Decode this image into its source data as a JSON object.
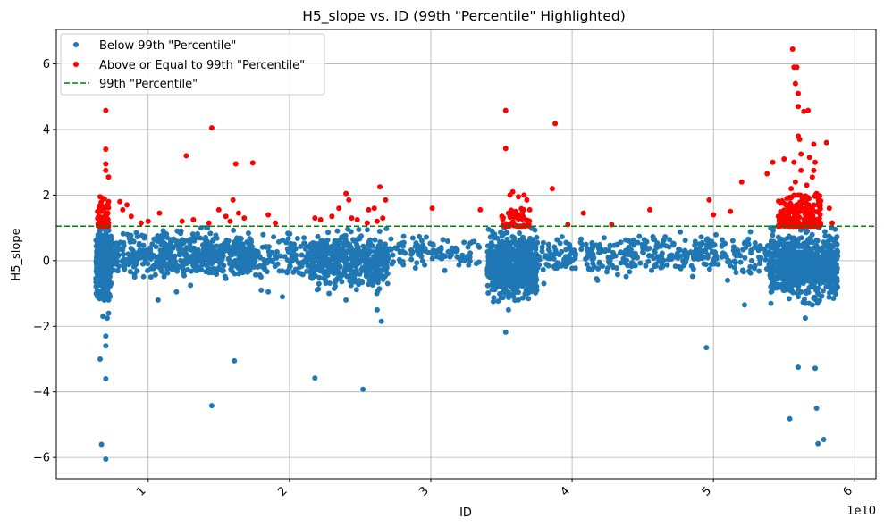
{
  "chart_data": {
    "type": "scatter",
    "title": "H5_slope vs. ID (99th \"Percentile\" Highlighted)",
    "xlabel": "ID",
    "ylabel": "H5_slope",
    "x_offset_label": "1e10",
    "xlim": [
      3500000000.0,
      61500000000.0
    ],
    "ylim": [
      -6.65,
      7.05
    ],
    "xticks": [
      {
        "value": 10000000000.0,
        "label": "1"
      },
      {
        "value": 20000000000.0,
        "label": "2"
      },
      {
        "value": 30000000000.0,
        "label": "3"
      },
      {
        "value": 40000000000.0,
        "label": "4"
      },
      {
        "value": 50000000000.0,
        "label": "5"
      },
      {
        "value": 60000000000.0,
        "label": "6"
      }
    ],
    "yticks": [
      {
        "value": -6,
        "label": "−6"
      },
      {
        "value": -4,
        "label": "−4"
      },
      {
        "value": -2,
        "label": "−2"
      },
      {
        "value": 0,
        "label": "0"
      },
      {
        "value": 2,
        "label": "2"
      },
      {
        "value": 4,
        "label": "4"
      },
      {
        "value": 6,
        "label": "6"
      }
    ],
    "grid": true,
    "legend_position": "top-left",
    "threshold": {
      "name": "99th \"Percentile\"",
      "value": 1.05,
      "color": "#008000",
      "style": "dashed"
    },
    "series": [
      {
        "name": "Below 99th \"Percentile\"",
        "color": "#1f77b4",
        "points": [
          [
            6600000000.0,
            -3.0
          ],
          [
            6700000000.0,
            -5.6
          ],
          [
            7000000000.0,
            -6.05
          ],
          [
            7000000000.0,
            -3.6
          ],
          [
            7000000000.0,
            -2.6
          ],
          [
            7000000000.0,
            -2.3
          ],
          [
            6800000000.0,
            -1.7
          ],
          [
            7100000000.0,
            -1.75
          ],
          [
            7200000000.0,
            -1.6
          ],
          [
            7200000000.0,
            -1.2
          ],
          [
            10700000000.0,
            -1.2
          ],
          [
            12000000000.0,
            -0.95
          ],
          [
            13000000000.0,
            -0.75
          ],
          [
            14500000000.0,
            -4.42
          ],
          [
            16100000000.0,
            -3.05
          ],
          [
            18000000000.0,
            -0.9
          ],
          [
            18500000000.0,
            -0.95
          ],
          [
            19500000000.0,
            -1.1
          ],
          [
            21800000000.0,
            -3.58
          ],
          [
            25200000000.0,
            -3.92
          ],
          [
            26500000000.0,
            -1.85
          ],
          [
            26200000000.0,
            -1.5
          ],
          [
            24000000000.0,
            -1.2
          ],
          [
            22800000000.0,
            -1.0
          ],
          [
            35300000000.0,
            -2.18
          ],
          [
            35500000000.0,
            -1.5
          ],
          [
            36200000000.0,
            -1.2
          ],
          [
            37500000000.0,
            -0.9
          ],
          [
            38000000000.0,
            -0.7
          ],
          [
            49500000000.0,
            -2.65
          ],
          [
            52200000000.0,
            -1.35
          ],
          [
            51000000000.0,
            -0.6
          ],
          [
            55400000000.0,
            -4.82
          ],
          [
            56000000000.0,
            -3.25
          ],
          [
            56500000000.0,
            -1.75
          ],
          [
            57000000000.0,
            -1.35
          ],
          [
            57200000000.0,
            -3.28
          ],
          [
            57300000000.0,
            -4.5
          ],
          [
            57400000000.0,
            -5.58
          ],
          [
            57800000000.0,
            -5.45
          ],
          [
            57400000000.0,
            -1.0
          ]
        ],
        "clusters": [
          {
            "x": [
              6300000000.0,
              7400000000.0
            ],
            "y": [
              -1.2,
              1.0
            ],
            "n": 420
          },
          {
            "x": [
              7400000000.0,
              10500000000.0
            ],
            "y": [
              -0.6,
              0.9
            ],
            "n": 120
          },
          {
            "x": [
              10500000000.0,
              17500000000.0
            ],
            "y": [
              -0.7,
              1.0
            ],
            "n": 420
          },
          {
            "x": [
              17500000000.0,
              21500000000.0
            ],
            "y": [
              -0.6,
              0.9
            ],
            "n": 110
          },
          {
            "x": [
              21500000000.0,
              27000000000.0
            ],
            "y": [
              -1.0,
              1.0
            ],
            "n": 460
          },
          {
            "x": [
              27000000000.0,
              33500000000.0
            ],
            "y": [
              -0.3,
              0.8
            ],
            "n": 110
          },
          {
            "x": [
              34000000000.0,
              37500000000.0
            ],
            "y": [
              -1.3,
              1.0
            ],
            "n": 560
          },
          {
            "x": [
              37500000000.0,
              44000000000.0
            ],
            "y": [
              -0.6,
              0.9
            ],
            "n": 150
          },
          {
            "x": [
              44000000000.0,
              54000000000.0
            ],
            "y": [
              -0.5,
              0.9
            ],
            "n": 240
          },
          {
            "x": [
              54000000000.0,
              58800000000.0
            ],
            "y": [
              -1.3,
              1.0
            ],
            "n": 720
          }
        ]
      },
      {
        "name": "Above or Equal to 99th \"Percentile\"",
        "color": "#ff0000",
        "points": [
          [
            7000000000.0,
            4.58
          ],
          [
            7000000000.0,
            3.4
          ],
          [
            7000000000.0,
            2.95
          ],
          [
            7000000000.0,
            2.75
          ],
          [
            7200000000.0,
            2.55
          ],
          [
            6600000000.0,
            1.95
          ],
          [
            6800000000.0,
            1.9
          ],
          [
            7200000000.0,
            1.8
          ],
          [
            8000000000.0,
            1.8
          ],
          [
            8500000000.0,
            1.7
          ],
          [
            8200000000.0,
            1.55
          ],
          [
            8800000000.0,
            1.35
          ],
          [
            9500000000.0,
            1.15
          ],
          [
            10000000000.0,
            1.2
          ],
          [
            10800000000.0,
            1.45
          ],
          [
            12700000000.0,
            3.2
          ],
          [
            12400000000.0,
            1.2
          ],
          [
            13200000000.0,
            1.25
          ],
          [
            14500000000.0,
            4.05
          ],
          [
            15000000000.0,
            1.55
          ],
          [
            15500000000.0,
            1.35
          ],
          [
            16000000000.0,
            1.85
          ],
          [
            16200000000.0,
            2.95
          ],
          [
            17400000000.0,
            2.98
          ],
          [
            16400000000.0,
            1.45
          ],
          [
            16800000000.0,
            1.3
          ],
          [
            15800000000.0,
            1.2
          ],
          [
            14300000000.0,
            1.15
          ],
          [
            18500000000.0,
            1.4
          ],
          [
            19000000000.0,
            1.15
          ],
          [
            21800000000.0,
            1.3
          ],
          [
            22200000000.0,
            1.25
          ],
          [
            23000000000.0,
            1.35
          ],
          [
            23500000000.0,
            1.6
          ],
          [
            24000000000.0,
            2.05
          ],
          [
            24200000000.0,
            1.85
          ],
          [
            24400000000.0,
            1.3
          ],
          [
            24800000000.0,
            1.25
          ],
          [
            25600000000.0,
            1.55
          ],
          [
            26000000000.0,
            1.6
          ],
          [
            26400000000.0,
            2.25
          ],
          [
            26800000000.0,
            1.85
          ],
          [
            26600000000.0,
            1.3
          ],
          [
            26200000000.0,
            1.2
          ],
          [
            25500000000.0,
            1.15
          ],
          [
            30100000000.0,
            1.6
          ],
          [
            33500000000.0,
            1.55
          ],
          [
            35300000000.0,
            4.58
          ],
          [
            35300000000.0,
            3.42
          ],
          [
            35600000000.0,
            2.0
          ],
          [
            35800000000.0,
            2.1
          ],
          [
            36200000000.0,
            1.95
          ],
          [
            36600000000.0,
            2.0
          ],
          [
            36800000000.0,
            1.85
          ],
          [
            37000000000.0,
            1.55
          ],
          [
            36000000000.0,
            1.5
          ],
          [
            35500000000.0,
            1.45
          ],
          [
            36400000000.0,
            1.4
          ],
          [
            35700000000.0,
            1.35
          ],
          [
            36300000000.0,
            1.3
          ],
          [
            38800000000.0,
            4.18
          ],
          [
            38600000000.0,
            2.2
          ],
          [
            39700000000.0,
            1.1
          ],
          [
            40800000000.0,
            1.45
          ],
          [
            42800000000.0,
            1.1
          ],
          [
            45500000000.0,
            1.55
          ],
          [
            49700000000.0,
            1.85
          ],
          [
            50000000000.0,
            1.4
          ],
          [
            51200000000.0,
            1.5
          ],
          [
            52000000000.0,
            2.4
          ],
          [
            53800000000.0,
            2.65
          ],
          [
            54200000000.0,
            3.0
          ],
          [
            55000000000.0,
            3.1
          ],
          [
            55200000000.0,
            1.9
          ],
          [
            55600000000.0,
            6.45
          ],
          [
            55700000000.0,
            5.9
          ],
          [
            55900000000.0,
            5.9
          ],
          [
            55800000000.0,
            5.4
          ],
          [
            56000000000.0,
            5.1
          ],
          [
            56000000000.0,
            4.7
          ],
          [
            56000000000.0,
            3.8
          ],
          [
            56100000000.0,
            3.7
          ],
          [
            56400000000.0,
            4.55
          ],
          [
            56700000000.0,
            4.58
          ],
          [
            56800000000.0,
            3.15
          ],
          [
            56200000000.0,
            3.25
          ],
          [
            55700000000.0,
            3.0
          ],
          [
            57100000000.0,
            3.55
          ],
          [
            57100000000.0,
            2.75
          ],
          [
            57200000000.0,
            3.0
          ],
          [
            58000000000.0,
            3.6
          ],
          [
            56200000000.0,
            2.75
          ],
          [
            56600000000.0,
            2.3
          ],
          [
            57000000000.0,
            2.55
          ],
          [
            55800000000.0,
            2.4
          ],
          [
            58200000000.0,
            1.6
          ],
          [
            58400000000.0,
            1.15
          ],
          [
            55500000000.0,
            2.2
          ],
          [
            57300000000.0,
            2.05
          ],
          [
            56000000000.0,
            2.0
          ]
        ],
        "clusters": [
          {
            "x": [
              6400000000.0,
              7200000000.0
            ],
            "y": [
              1.05,
              1.9
            ],
            "n": 45
          },
          {
            "x": [
              34800000000.0,
              37000000000.0
            ],
            "y": [
              1.05,
              1.6
            ],
            "n": 40
          },
          {
            "x": [
              54500000000.0,
              57600000000.0
            ],
            "y": [
              1.05,
              2.0
            ],
            "n": 220
          }
        ]
      }
    ]
  }
}
